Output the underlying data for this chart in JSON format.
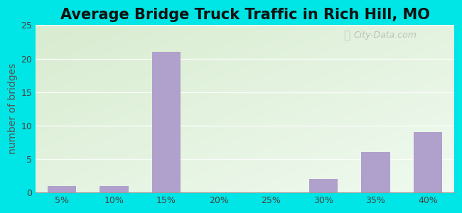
{
  "title": "Average Bridge Truck Traffic in Rich Hill, MO",
  "categories": [
    "5%",
    "10%",
    "15%",
    "20%",
    "25%",
    "30%",
    "35%",
    "40%"
  ],
  "values": [
    1,
    1,
    21,
    0,
    0,
    2,
    6,
    9
  ],
  "bar_color": "#b0a0cc",
  "ylabel": "number of bridges",
  "ylim": [
    0,
    25
  ],
  "yticks": [
    0,
    5,
    10,
    15,
    20,
    25
  ],
  "bg_outer": "#00e5e5",
  "bg_plot_topleft": "#d8ecd0",
  "bg_plot_bottomright": "#e8f8f0",
  "title_fontsize": 15,
  "axis_label_fontsize": 10,
  "tick_fontsize": 9,
  "watermark": "City-Data.com",
  "grid_color": "#c8dfc0"
}
